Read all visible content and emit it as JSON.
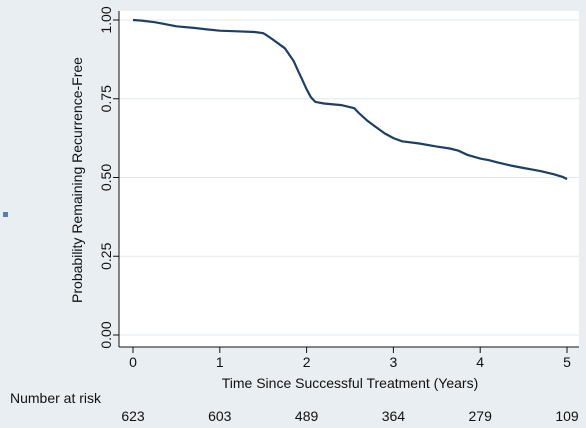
{
  "chart_data": {
    "type": "line",
    "title": "",
    "xlabel": "Time Since Successful Treatment (Years)",
    "ylabel": "Probability Remaining Recurrence-Free",
    "xlim": [
      0,
      5
    ],
    "ylim": [
      0,
      1
    ],
    "x_ticks": [
      0,
      1,
      2,
      3,
      4,
      5
    ],
    "y_ticks": [
      0.0,
      0.25,
      0.5,
      0.75,
      1.0
    ],
    "x_tick_labels": [
      "0",
      "1",
      "2",
      "3",
      "4",
      "5"
    ],
    "y_tick_labels": [
      "0.00",
      "0.25",
      "0.50",
      "0.75",
      "1.00"
    ],
    "grid": true,
    "line_color": "#1d3f63",
    "series": [
      {
        "x": [
          0,
          0.1,
          0.25,
          0.35,
          0.5,
          0.7,
          0.85,
          1.0,
          1.2,
          1.4,
          1.5,
          1.55,
          1.6,
          1.7,
          1.75,
          1.8,
          1.85,
          1.9,
          1.95,
          2.0,
          2.05,
          2.1,
          2.2,
          2.4,
          2.55,
          2.6,
          2.7,
          2.8,
          2.9,
          3.0,
          3.1,
          3.3,
          3.5,
          3.65,
          3.75,
          3.85,
          4.0,
          4.1,
          4.2,
          4.35,
          4.5,
          4.6,
          4.7,
          4.85,
          4.95,
          5.0
        ],
        "y": [
          1.0,
          0.998,
          0.993,
          0.988,
          0.98,
          0.975,
          0.97,
          0.966,
          0.964,
          0.962,
          0.958,
          0.95,
          0.94,
          0.92,
          0.91,
          0.89,
          0.87,
          0.84,
          0.81,
          0.78,
          0.755,
          0.74,
          0.735,
          0.73,
          0.72,
          0.705,
          0.68,
          0.66,
          0.64,
          0.625,
          0.615,
          0.608,
          0.598,
          0.592,
          0.585,
          0.572,
          0.56,
          0.555,
          0.548,
          0.538,
          0.53,
          0.525,
          0.52,
          0.51,
          0.502,
          0.495
        ]
      }
    ],
    "risk_table": {
      "label": "Number at risk",
      "values": [
        "623",
        "603",
        "489",
        "364",
        "279",
        "109"
      ]
    }
  }
}
